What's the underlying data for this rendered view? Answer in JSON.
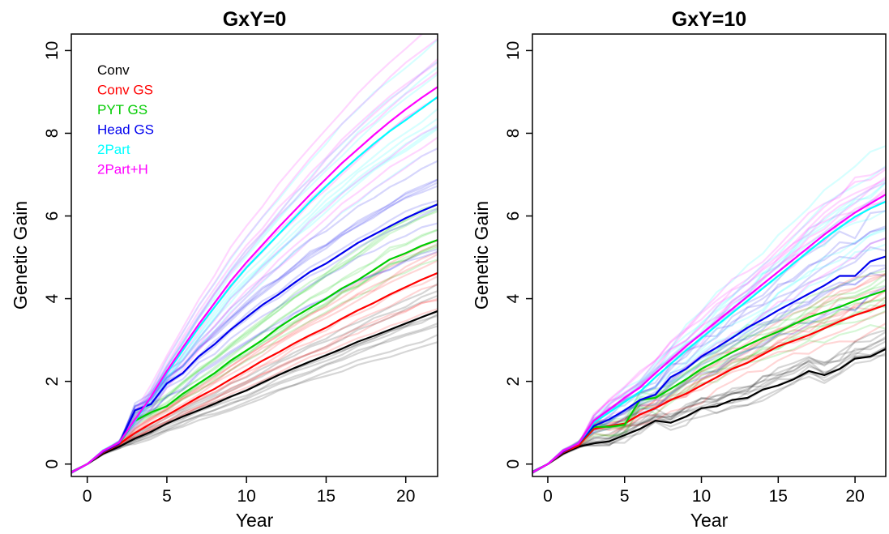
{
  "chart_data": [
    {
      "type": "line",
      "title": "GxY=0",
      "xlabel": "Year",
      "ylabel": "Genetic Gain",
      "xlim": [
        -1,
        22
      ],
      "ylim": [
        -0.3,
        10.4
      ],
      "xticks": [
        0,
        5,
        10,
        15,
        20
      ],
      "yticks": [
        0,
        2,
        4,
        6,
        8,
        10
      ],
      "grid": false,
      "legend": "top-left",
      "x": [
        -1,
        0,
        1,
        2,
        3,
        4,
        5,
        6,
        7,
        8,
        9,
        10,
        11,
        12,
        13,
        14,
        15,
        16,
        17,
        18,
        19,
        20,
        21,
        22
      ],
      "series": [
        {
          "name": "Conv",
          "color": "#000000",
          "values": [
            -0.2,
            0,
            0.25,
            0.42,
            0.62,
            0.78,
            0.98,
            1.15,
            1.3,
            1.46,
            1.63,
            1.78,
            1.97,
            2.15,
            2.32,
            2.48,
            2.63,
            2.79,
            2.96,
            3.1,
            3.25,
            3.4,
            3.55,
            3.7
          ]
        },
        {
          "name": "Conv GS",
          "color": "#ff0000",
          "values": [
            -0.2,
            0,
            0.28,
            0.48,
            0.75,
            0.98,
            1.18,
            1.4,
            1.62,
            1.82,
            2.05,
            2.27,
            2.5,
            2.7,
            2.92,
            3.12,
            3.3,
            3.52,
            3.72,
            3.9,
            4.1,
            4.28,
            4.46,
            4.62
          ]
        },
        {
          "name": "PYT GS",
          "color": "#00cc00",
          "values": [
            -0.2,
            0,
            0.3,
            0.5,
            1.05,
            1.25,
            1.4,
            1.7,
            1.95,
            2.2,
            2.5,
            2.75,
            3.0,
            3.3,
            3.55,
            3.78,
            4.0,
            4.25,
            4.45,
            4.7,
            4.95,
            5.1,
            5.28,
            5.42
          ]
        },
        {
          "name": "Head GS",
          "color": "#0000ee",
          "values": [
            -0.2,
            0,
            0.3,
            0.5,
            1.3,
            1.45,
            1.95,
            2.2,
            2.6,
            2.9,
            3.25,
            3.55,
            3.85,
            4.1,
            4.38,
            4.65,
            4.85,
            5.1,
            5.35,
            5.55,
            5.75,
            5.95,
            6.12,
            6.28
          ]
        },
        {
          "name": "2Part",
          "color": "#00ffff",
          "values": [
            -0.2,
            0,
            0.32,
            0.52,
            1.05,
            1.6,
            2.2,
            2.75,
            3.3,
            3.8,
            4.3,
            4.75,
            5.15,
            5.55,
            5.95,
            6.35,
            6.72,
            7.08,
            7.42,
            7.75,
            8.05,
            8.32,
            8.6,
            8.88
          ]
        },
        {
          "name": "2Part+H",
          "color": "#ff00ff",
          "values": [
            -0.2,
            0,
            0.32,
            0.52,
            1.08,
            1.62,
            2.25,
            2.82,
            3.38,
            3.9,
            4.42,
            4.88,
            5.3,
            5.72,
            6.12,
            6.52,
            6.9,
            7.28,
            7.62,
            7.96,
            8.28,
            8.58,
            8.86,
            9.12
          ]
        }
      ]
    },
    {
      "type": "line",
      "title": "GxY=10",
      "xlabel": "Year",
      "ylabel": "Genetic Gain",
      "xlim": [
        -1,
        22
      ],
      "ylim": [
        -0.3,
        10.4
      ],
      "xticks": [
        0,
        5,
        10,
        15,
        20
      ],
      "yticks": [
        0,
        2,
        4,
        6,
        8,
        10
      ],
      "grid": false,
      "x": [
        -1,
        0,
        1,
        2,
        3,
        4,
        5,
        6,
        7,
        8,
        9,
        10,
        11,
        12,
        13,
        14,
        15,
        16,
        17,
        18,
        19,
        20,
        21,
        22
      ],
      "series": [
        {
          "color": "#000000",
          "values": [
            -0.2,
            0,
            0.25,
            0.42,
            0.5,
            0.55,
            0.7,
            0.85,
            1.05,
            1.0,
            1.15,
            1.35,
            1.4,
            1.55,
            1.6,
            1.8,
            1.9,
            2.05,
            2.25,
            2.15,
            2.3,
            2.55,
            2.6,
            2.78
          ]
        },
        {
          "color": "#ff0000",
          "values": [
            -0.2,
            0,
            0.28,
            0.45,
            0.85,
            0.92,
            0.98,
            1.2,
            1.35,
            1.55,
            1.7,
            1.9,
            2.1,
            2.3,
            2.45,
            2.65,
            2.85,
            2.98,
            3.12,
            3.28,
            3.45,
            3.6,
            3.72,
            3.85
          ]
        },
        {
          "color": "#00cc00",
          "values": [
            -0.2,
            0,
            0.3,
            0.5,
            0.9,
            0.9,
            0.95,
            1.55,
            1.6,
            1.82,
            2.05,
            2.3,
            2.5,
            2.7,
            2.88,
            3.05,
            3.2,
            3.38,
            3.55,
            3.68,
            3.8,
            3.95,
            4.08,
            4.2
          ]
        },
        {
          "color": "#0000ee",
          "values": [
            -0.2,
            0,
            0.3,
            0.5,
            0.92,
            1.08,
            1.3,
            1.55,
            1.68,
            2.1,
            2.3,
            2.6,
            2.82,
            3.05,
            3.3,
            3.5,
            3.72,
            3.92,
            4.12,
            4.32,
            4.55,
            4.55,
            4.9,
            5.02
          ]
        },
        {
          "color": "#00ffff",
          "values": [
            -0.2,
            0,
            0.32,
            0.5,
            1.0,
            1.25,
            1.5,
            1.75,
            2.1,
            2.42,
            2.75,
            3.05,
            3.35,
            3.65,
            3.95,
            4.25,
            4.55,
            4.85,
            5.15,
            5.45,
            5.72,
            5.98,
            6.18,
            6.35
          ]
        },
        {
          "color": "#ff00ff",
          "values": [
            -0.2,
            0,
            0.32,
            0.5,
            1.05,
            1.32,
            1.6,
            1.85,
            2.2,
            2.52,
            2.85,
            3.15,
            3.45,
            3.75,
            4.05,
            4.35,
            4.65,
            4.95,
            5.25,
            5.55,
            5.82,
            6.08,
            6.3,
            6.52
          ]
        }
      ]
    }
  ]
}
